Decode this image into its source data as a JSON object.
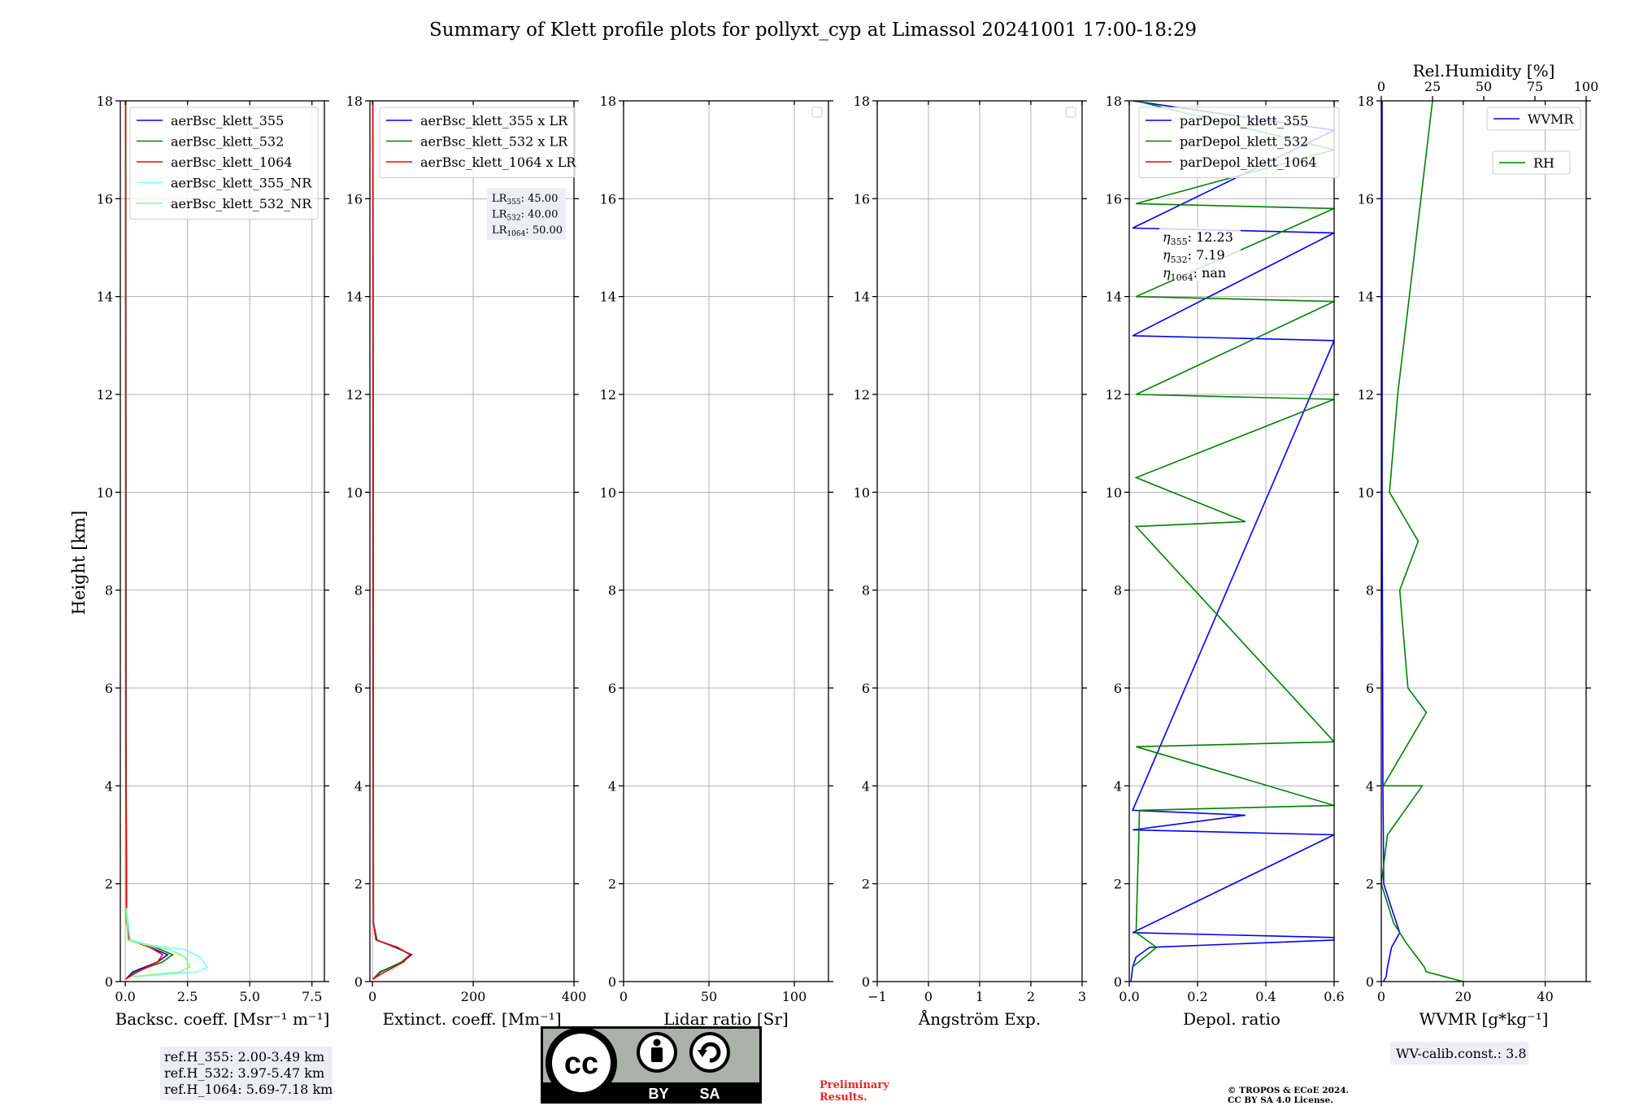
{
  "title": "Summary of Klett profile plots for pollyxt_cyp at Limassol 20241001 17:00-18:29",
  "ylabel": "Height [km]",
  "panels": [
    {
      "key": "bsc",
      "xlabel": "Backsc. coeff. [Msr⁻¹ m⁻¹]",
      "xlim": [
        -0.2,
        8.0
      ],
      "xticks": [
        0,
        2.5,
        5.0,
        7.5
      ],
      "xtick_labels": [
        "0.0",
        "2.5",
        "5.0",
        "7.5"
      ],
      "legend": [
        {
          "label": "aerBsc_klett_355",
          "color": "#0000ff"
        },
        {
          "label": "aerBsc_klett_532",
          "color": "#008000"
        },
        {
          "label": "aerBsc_klett_1064",
          "color": "#ff0000"
        },
        {
          "label": "aerBsc_klett_355_NR",
          "color": "#7fffff"
        },
        {
          "label": "aerBsc_klett_532_NR",
          "color": "#7fff7f"
        }
      ]
    },
    {
      "key": "ext",
      "xlabel": "Extinct. coeff. [Mm⁻¹]",
      "xlim": [
        -5,
        400
      ],
      "xticks": [
        0,
        200,
        400
      ],
      "xtick_labels": [
        "0",
        "200",
        "400"
      ],
      "legend": [
        {
          "label": "aerBsc_klett_355 x LR",
          "color": "#0000ff"
        },
        {
          "label": "aerBsc_klett_532 x LR",
          "color": "#008000"
        },
        {
          "label": "aerBsc_klett_1064 x LR",
          "color": "#ff0000"
        }
      ]
    },
    {
      "key": "lr",
      "xlabel": "Lidar ratio [Sr]",
      "xlim": [
        0,
        120
      ],
      "xticks": [
        0,
        50,
        100
      ],
      "xtick_labels": [
        "0",
        "50",
        "100"
      ],
      "legend": []
    },
    {
      "key": "ang",
      "xlabel": "Ångström Exp.",
      "xlim": [
        -1,
        3
      ],
      "xticks": [
        -1,
        0,
        1,
        2,
        3
      ],
      "xtick_labels": [
        "−1",
        "0",
        "1",
        "2",
        "3"
      ],
      "legend": []
    },
    {
      "key": "dep",
      "xlabel": "Depol. ratio",
      "xlim": [
        0,
        0.6
      ],
      "xticks": [
        0,
        0.2,
        0.4,
        0.6
      ],
      "xtick_labels": [
        "0.0",
        "0.2",
        "0.4",
        "0.6"
      ],
      "legend": [
        {
          "label": "parDepol_klett_355",
          "color": "#0000ff"
        },
        {
          "label": "parDepol_klett_532",
          "color": "#008000"
        },
        {
          "label": "parDepol_klett_1064",
          "color": "#ff0000"
        }
      ]
    },
    {
      "key": "wv",
      "xlabel": "WVMR [g*kg⁻¹]",
      "xlim": [
        0,
        50
      ],
      "xticks": [
        0,
        20,
        40
      ],
      "xtick_labels": [
        "0",
        "20",
        "40"
      ],
      "top_xlabel": "Rel.Humidity [%]",
      "top_xlim": [
        0,
        100
      ],
      "top_xticks": [
        0,
        25,
        50,
        75,
        100
      ],
      "top_xtick_labels": [
        "0",
        "25",
        "50",
        "75",
        "100"
      ],
      "legend_wvmr": {
        "label": "WVMR",
        "color": "#0000ff"
      },
      "legend_rh": {
        "label": "RH",
        "color": "#008000"
      }
    }
  ],
  "ylim": [
    0,
    18
  ],
  "yticks": [
    0,
    2,
    4,
    6,
    8,
    10,
    12,
    14,
    16,
    18
  ],
  "ytick_labels": [
    "0",
    "2",
    "4",
    "6",
    "8",
    "10",
    "12",
    "14",
    "16",
    "18"
  ],
  "lr_box": [
    {
      "sub": "355",
      "value": ": 45.00"
    },
    {
      "sub": "532",
      "value": ": 40.00"
    },
    {
      "sub": "1064",
      "value": ": 50.00"
    }
  ],
  "eta_box": [
    {
      "sub": "355",
      "value": ": 12.23"
    },
    {
      "sub": "532",
      "value": ": 7.19"
    },
    {
      "sub": "1064",
      "value": ": nan"
    }
  ],
  "ref_box": [
    "ref.H_355: 2.00-3.49 km",
    "ref.H_532: 3.97-5.47 km",
    "ref.H_1064: 5.69-7.18 km"
  ],
  "wv_calib": "WV-calib.const.: 3.8",
  "preliminary": [
    "Preliminary",
    "Results."
  ],
  "copyright": [
    "© TROPOS & ECoE 2024.",
    "CC BY SA 4.0 License."
  ],
  "cc_badge": {
    "by": "BY",
    "sa": "SA",
    "cc": "cc"
  },
  "colors": {
    "c355": "#0000ff",
    "c532": "#008000",
    "c1064": "#ff0000",
    "nr355": "#7fffff",
    "nr532": "#7fff7f"
  },
  "chart_data": {
    "type": "line",
    "title": "Summary of Klett profile plots for pollyxt_cyp at Limassol 20241001 17:00-18:29",
    "ylabel": "Height [km]",
    "ylim": [
      0,
      18
    ],
    "series": [
      {
        "panel": "bsc",
        "name": "aerBsc_klett_355",
        "x": [
          0.02,
          0.3,
          1.3,
          1.7,
          1.0,
          0.2,
          0.05,
          0.03,
          0.02
        ],
        "y": [
          0.05,
          0.2,
          0.4,
          0.55,
          0.7,
          0.85,
          1.2,
          5,
          18
        ]
      },
      {
        "panel": "bsc",
        "name": "aerBsc_klett_532",
        "x": [
          0.02,
          0.4,
          1.5,
          1.9,
          1.2,
          0.2,
          0.05,
          0.03,
          0.02
        ],
        "y": [
          0.05,
          0.2,
          0.4,
          0.55,
          0.7,
          0.85,
          1.2,
          5,
          18
        ]
      },
      {
        "panel": "bsc",
        "name": "aerBsc_klett_1064",
        "x": [
          0.02,
          0.5,
          1.3,
          1.5,
          1.0,
          0.15,
          0.05,
          0.02,
          0.01
        ],
        "y": [
          0.05,
          0.2,
          0.4,
          0.55,
          0.7,
          0.85,
          1.2,
          5,
          18
        ]
      },
      {
        "panel": "bsc",
        "name": "aerBsc_klett_355_NR",
        "x": [
          0.4,
          2.9,
          3.3,
          3.0,
          2.4,
          1.0,
          0.2,
          0.05
        ],
        "y": [
          0.1,
          0.2,
          0.3,
          0.5,
          0.65,
          0.75,
          0.85,
          1.5
        ]
      },
      {
        "panel": "bsc",
        "name": "aerBsc_klett_532_NR",
        "x": [
          0.3,
          2.2,
          2.6,
          2.4,
          1.8,
          0.8,
          0.1,
          0.04
        ],
        "y": [
          0.1,
          0.2,
          0.3,
          0.5,
          0.65,
          0.75,
          0.85,
          1.5
        ]
      },
      {
        "panel": "ext",
        "name": "aerBsc_klett_355 x LR",
        "x": [
          1,
          15,
          60,
          78,
          45,
          9,
          2,
          1
        ],
        "y": [
          0.05,
          0.2,
          0.4,
          0.55,
          0.7,
          0.85,
          1.2,
          18
        ]
      },
      {
        "panel": "ext",
        "name": "aerBsc_klett_532 x LR",
        "x": [
          1,
          17,
          58,
          75,
          48,
          8,
          2,
          1
        ],
        "y": [
          0.05,
          0.2,
          0.4,
          0.55,
          0.7,
          0.85,
          1.2,
          18
        ]
      },
      {
        "panel": "ext",
        "name": "aerBsc_klett_1064 x LR",
        "x": [
          1,
          25,
          62,
          75,
          50,
          7,
          2,
          1
        ],
        "y": [
          0.05,
          0.2,
          0.4,
          0.55,
          0.7,
          0.85,
          1.2,
          18
        ]
      },
      {
        "panel": "dep",
        "name": "parDepol_klett_355",
        "x": [
          0.005,
          0.01,
          0.02,
          0.06,
          0.6,
          0.6,
          0.01,
          0.6,
          0.01,
          0.34,
          0.01,
          0.6,
          0.01,
          0.6,
          0.01,
          0.6,
          0.01
        ],
        "y": [
          0,
          0.3,
          0.5,
          0.7,
          0.85,
          0.9,
          1.0,
          3.0,
          3.1,
          3.4,
          3.5,
          13.1,
          13.2,
          15.3,
          15.4,
          17.4,
          18
        ]
      },
      {
        "panel": "dep",
        "name": "parDepol_klett_532",
        "x": [
          0.01,
          0.08,
          0.02,
          0.03,
          0.6,
          0.02,
          0.6,
          0.02,
          0.34,
          0.02,
          0.6,
          0.02,
          0.6,
          0.02,
          0.6,
          0.02,
          0.6,
          0.02
        ],
        "y": [
          0.3,
          0.7,
          1.0,
          3.5,
          3.6,
          4.8,
          4.9,
          9.3,
          9.4,
          10.3,
          11.9,
          12.0,
          13.9,
          14.0,
          15.8,
          15.9,
          17.0,
          18
        ]
      },
      {
        "panel": "wv",
        "name": "WVMR",
        "x": [
          0.5,
          1.2,
          1.5,
          2.5,
          4.5,
          2.5,
          0.6,
          0.4,
          0.2,
          0.2
        ],
        "y": [
          0,
          0.1,
          0.3,
          0.7,
          1.0,
          1.5,
          2.0,
          4.0,
          10,
          18
        ]
      },
      {
        "panel": "wv",
        "name": "RH",
        "x": [
          40,
          22,
          21,
          12,
          6,
          0,
          3,
          20,
          1,
          22,
          13,
          11,
          9,
          18,
          4,
          8,
          25
        ],
        "y": [
          0,
          0.2,
          0.3,
          0.8,
          1.2,
          2.0,
          3.0,
          4.0,
          4.0,
          5.5,
          6.0,
          7.0,
          8.0,
          9.0,
          10.0,
          12.0,
          18
        ]
      }
    ]
  }
}
